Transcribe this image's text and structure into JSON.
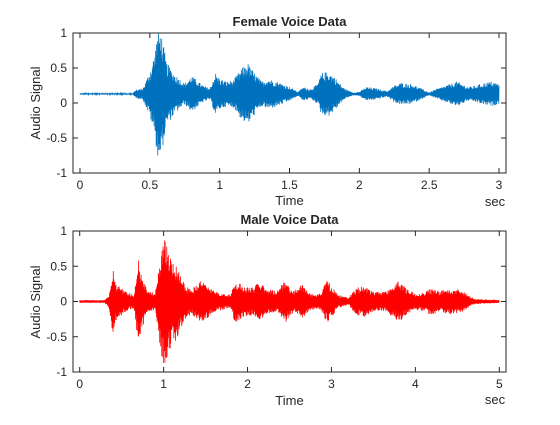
{
  "chart_data": [
    {
      "type": "line",
      "title": "Female Voice Data",
      "xlabel": "Time",
      "ylabel": "Audio Signal",
      "xunit": "sec",
      "xlim": [
        -0.05,
        3.05
      ],
      "ylim": [
        -1,
        1
      ],
      "xticks": [
        0,
        0.5,
        1,
        1.5,
        2,
        2.5,
        3
      ],
      "xtick_labels": [
        "0",
        "0.5",
        "1",
        "1.5",
        "2",
        "2.5",
        "3"
      ],
      "yticks": [
        -1,
        -0.5,
        0,
        0.5,
        1
      ],
      "ytick_labels": [
        "-1",
        "-0.5",
        "0",
        "0.5",
        "1"
      ],
      "color": "#0072BD",
      "baseline": 0.13,
      "envelope": [
        [
          0.0,
          0.01
        ],
        [
          0.38,
          0.01
        ],
        [
          0.4,
          0.06
        ],
        [
          0.45,
          0.08
        ],
        [
          0.5,
          0.32
        ],
        [
          0.53,
          0.55
        ],
        [
          0.56,
          0.95
        ],
        [
          0.58,
          0.9
        ],
        [
          0.62,
          0.45
        ],
        [
          0.68,
          0.28
        ],
        [
          0.75,
          0.15
        ],
        [
          0.8,
          0.26
        ],
        [
          0.88,
          0.12
        ],
        [
          0.93,
          0.08
        ],
        [
          0.97,
          0.3
        ],
        [
          1.0,
          0.22
        ],
        [
          1.05,
          0.18
        ],
        [
          1.1,
          0.2
        ],
        [
          1.15,
          0.35
        ],
        [
          1.2,
          0.45
        ],
        [
          1.25,
          0.3
        ],
        [
          1.3,
          0.18
        ],
        [
          1.35,
          0.22
        ],
        [
          1.42,
          0.17
        ],
        [
          1.48,
          0.12
        ],
        [
          1.52,
          0.08
        ],
        [
          1.56,
          0.03
        ],
        [
          1.6,
          0.1
        ],
        [
          1.65,
          0.07
        ],
        [
          1.7,
          0.14
        ],
        [
          1.73,
          0.3
        ],
        [
          1.78,
          0.32
        ],
        [
          1.82,
          0.25
        ],
        [
          1.88,
          0.1
        ],
        [
          1.92,
          0.05
        ],
        [
          1.96,
          0.02
        ],
        [
          2.0,
          0.03
        ],
        [
          2.05,
          0.1
        ],
        [
          2.12,
          0.08
        ],
        [
          2.2,
          0.04
        ],
        [
          2.25,
          0.12
        ],
        [
          2.3,
          0.16
        ],
        [
          2.38,
          0.14
        ],
        [
          2.42,
          0.1
        ],
        [
          2.5,
          0.02
        ],
        [
          2.55,
          0.07
        ],
        [
          2.62,
          0.12
        ],
        [
          2.7,
          0.18
        ],
        [
          2.78,
          0.1
        ],
        [
          2.83,
          0.12
        ],
        [
          2.9,
          0.16
        ],
        [
          2.95,
          0.18
        ],
        [
          3.0,
          0.14
        ]
      ]
    },
    {
      "type": "line",
      "title": "Male Voice Data",
      "xlabel": "Time",
      "ylabel": "Audio Signal",
      "xunit": "sec",
      "xlim": [
        -0.08,
        5.08
      ],
      "ylim": [
        -1,
        1
      ],
      "xticks": [
        0,
        1,
        2,
        3,
        4,
        5
      ],
      "xtick_labels": [
        "0",
        "1",
        "2",
        "3",
        "4",
        "5"
      ],
      "yticks": [
        -1,
        -0.5,
        0,
        0.5,
        1
      ],
      "ytick_labels": [
        "-1",
        "-0.5",
        "0",
        "0.5",
        "1"
      ],
      "color": "#FF0000",
      "baseline": 0.0,
      "envelope": [
        [
          0.0,
          0.02
        ],
        [
          0.3,
          0.02
        ],
        [
          0.35,
          0.1
        ],
        [
          0.4,
          0.5
        ],
        [
          0.42,
          0.28
        ],
        [
          0.5,
          0.2
        ],
        [
          0.58,
          0.12
        ],
        [
          0.65,
          0.1
        ],
        [
          0.7,
          0.65
        ],
        [
          0.73,
          0.45
        ],
        [
          0.8,
          0.15
        ],
        [
          0.9,
          0.12
        ],
        [
          0.97,
          0.75
        ],
        [
          1.0,
          0.9
        ],
        [
          1.05,
          0.8
        ],
        [
          1.1,
          0.6
        ],
        [
          1.15,
          0.55
        ],
        [
          1.2,
          0.4
        ],
        [
          1.28,
          0.2
        ],
        [
          1.35,
          0.2
        ],
        [
          1.45,
          0.32
        ],
        [
          1.55,
          0.2
        ],
        [
          1.6,
          0.15
        ],
        [
          1.7,
          0.12
        ],
        [
          1.8,
          0.1
        ],
        [
          1.85,
          0.3
        ],
        [
          1.95,
          0.22
        ],
        [
          2.05,
          0.2
        ],
        [
          2.15,
          0.28
        ],
        [
          2.25,
          0.18
        ],
        [
          2.35,
          0.15
        ],
        [
          2.45,
          0.3
        ],
        [
          2.55,
          0.15
        ],
        [
          2.65,
          0.25
        ],
        [
          2.75,
          0.12
        ],
        [
          2.85,
          0.1
        ],
        [
          2.95,
          0.3
        ],
        [
          3.0,
          0.22
        ],
        [
          3.08,
          0.1
        ],
        [
          3.2,
          0.05
        ],
        [
          3.3,
          0.2
        ],
        [
          3.4,
          0.22
        ],
        [
          3.5,
          0.14
        ],
        [
          3.65,
          0.15
        ],
        [
          3.8,
          0.3
        ],
        [
          3.9,
          0.18
        ],
        [
          4.0,
          0.12
        ],
        [
          4.1,
          0.14
        ],
        [
          4.2,
          0.2
        ],
        [
          4.28,
          0.15
        ],
        [
          4.4,
          0.18
        ],
        [
          4.5,
          0.18
        ],
        [
          4.6,
          0.12
        ],
        [
          4.7,
          0.04
        ],
        [
          4.85,
          0.03
        ],
        [
          5.0,
          0.02
        ]
      ]
    }
  ]
}
